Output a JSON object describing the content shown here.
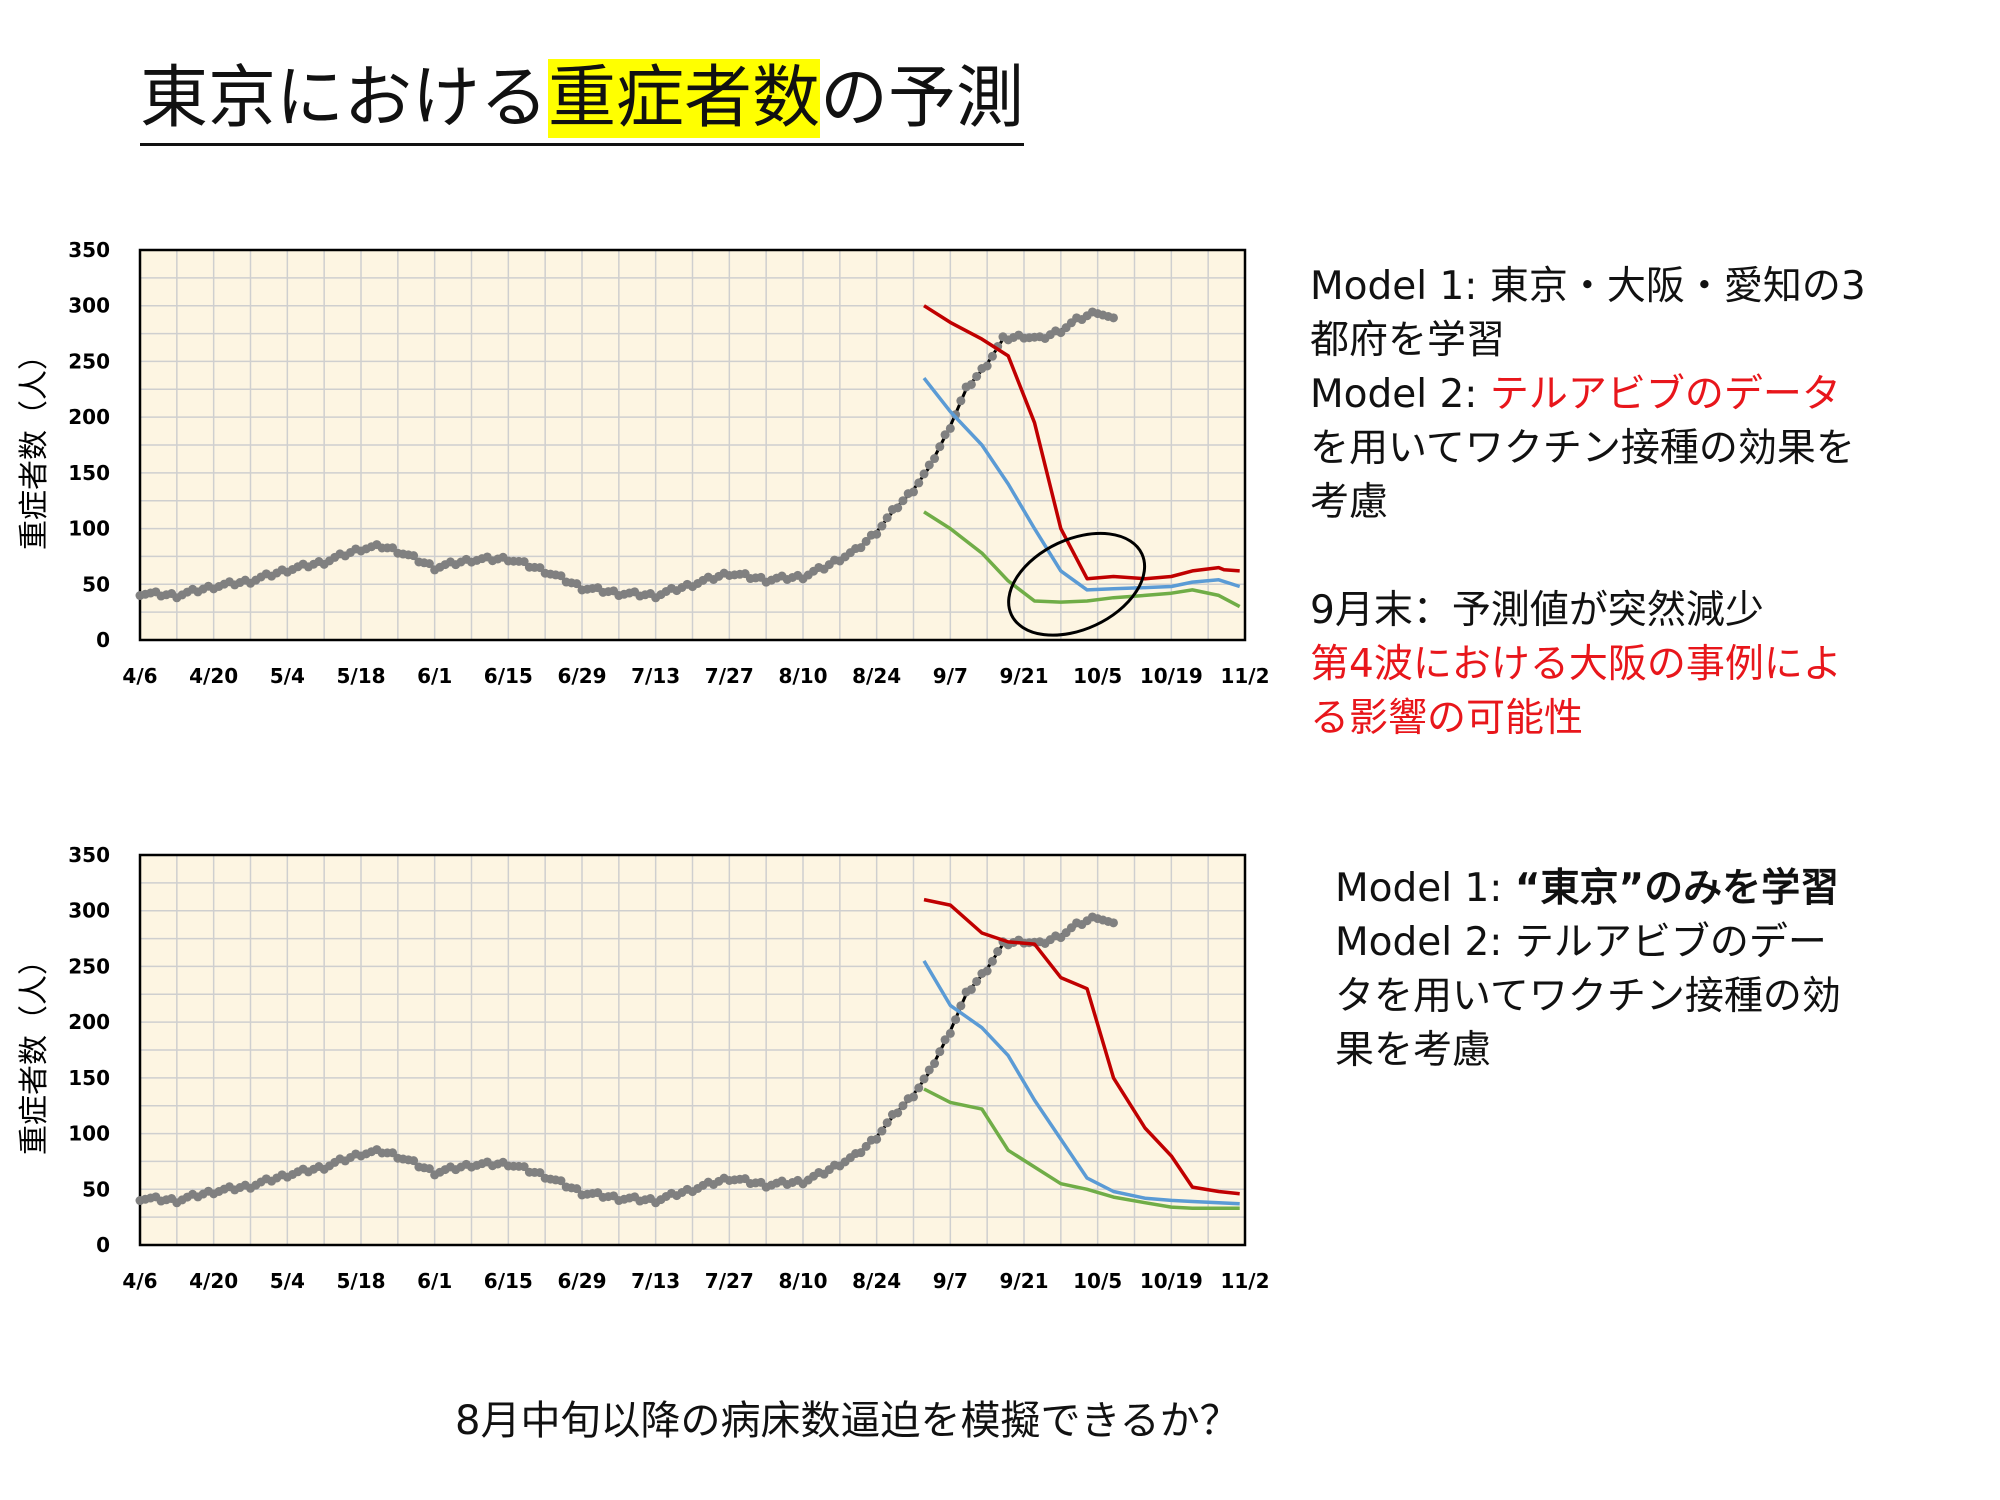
{
  "title": {
    "prefix": "東京における",
    "highlight": "重症者数",
    "suffix": "の予測"
  },
  "bottom_question": "8月中旬以降の病床数逼迫を模擬できるか？",
  "colors": {
    "plot_bg": "#fdf5e2",
    "grid": "#cfcfcf",
    "observed_line": "#000000",
    "observed_points": "#808080",
    "model1": "#c00000",
    "model2": "#5b9bd5",
    "model3": "#70ad47",
    "highlight": "#ffff00",
    "red_text": "#e8161b"
  },
  "chart_notes": {
    "top": {
      "line1": "Model 1: 東京・大阪・愛知の3",
      "line2": "都府を学習",
      "line3_prefix": "Model 2: ",
      "line3_red": "テルアビブのデータ",
      "line4": "を用いてワクチン接種の効果を",
      "line5": "考慮",
      "line6": "9月末：予測値が突然減少",
      "line7": "第4波における大阪の事例によ",
      "line8": "る影響の可能性"
    },
    "bottom": {
      "line1_prefix": "Model 1: ",
      "line1_bold": "“東京”のみを学習",
      "line2": "Model 2: テルアビブのデー",
      "line3": "タを用いてワクチン接種の効",
      "line4": "果を考慮"
    }
  },
  "chart_data": [
    {
      "type": "line",
      "ylabel": "重症者数（人）",
      "ylim": [
        0,
        350
      ],
      "yticks": [
        "0",
        "50",
        "100",
        "150",
        "200",
        "250",
        "300",
        "350"
      ],
      "xticks": [
        "4/6",
        "4/20",
        "5/4",
        "5/18",
        "6/1",
        "6/15",
        "6/29",
        "7/13",
        "7/27",
        "8/10",
        "8/24",
        "9/7",
        "9/21",
        "10/5",
        "10/19",
        "11/2"
      ],
      "x_range_days": [
        0,
        210
      ],
      "grid": true,
      "annotation": "ellipse around the late-September drop",
      "observed": {
        "x": [
          0,
          7,
          14,
          21,
          28,
          35,
          42,
          46,
          49,
          56,
          63,
          70,
          77,
          84,
          91,
          98,
          105,
          112,
          119,
          126,
          130,
          133,
          136,
          140,
          143,
          147,
          150,
          154,
          157,
          161,
          164,
          168,
          171,
          175,
          178,
          182,
          185,
          189,
          196,
          203,
          210
        ],
        "y": [
          42,
          40,
          48,
          53,
          63,
          70,
          82,
          84,
          80,
          65,
          72,
          73,
          62,
          47,
          42,
          40,
          50,
          60,
          54,
          57,
          65,
          73,
          80,
          97,
          115,
          135,
          155,
          192,
          225,
          248,
          270,
          273,
          270,
          278,
          287,
          295,
          287,
          null,
          null,
          null,
          null
        ]
      },
      "series": [
        {
          "x": [
            149,
            154,
            160,
            165,
            170,
            175,
            180,
            185,
            191,
            196,
            200,
            205,
            206,
            209
          ],
          "y": [
            300,
            285,
            270,
            255,
            195,
            100,
            55,
            57,
            55,
            57,
            62,
            65,
            63,
            62
          ]
        },
        {
          "x": [
            149,
            154,
            160,
            165,
            170,
            175,
            180,
            185,
            191,
            196,
            200,
            205,
            209
          ],
          "y": [
            235,
            205,
            175,
            140,
            100,
            62,
            45,
            46,
            47,
            48,
            52,
            54,
            48
          ]
        },
        {
          "x": [
            149,
            154,
            160,
            165,
            170,
            175,
            180,
            185,
            191,
            196,
            200,
            205,
            209
          ],
          "y": [
            115,
            100,
            78,
            53,
            35,
            34,
            35,
            38,
            40,
            42,
            45,
            40,
            30
          ]
        }
      ]
    },
    {
      "type": "line",
      "ylabel": "重症者数（人）",
      "ylim": [
        0,
        350
      ],
      "yticks": [
        "0",
        "50",
        "100",
        "150",
        "200",
        "250",
        "300",
        "350"
      ],
      "xticks": [
        "4/6",
        "4/20",
        "5/4",
        "5/18",
        "6/1",
        "6/15",
        "6/29",
        "7/13",
        "7/27",
        "8/10",
        "8/24",
        "9/7",
        "9/21",
        "10/5",
        "10/19",
        "11/2"
      ],
      "x_range_days": [
        0,
        210
      ],
      "grid": true,
      "observed": {
        "x": [
          0,
          7,
          14,
          21,
          28,
          35,
          42,
          46,
          49,
          56,
          63,
          70,
          77,
          84,
          91,
          98,
          105,
          112,
          119,
          126,
          130,
          133,
          136,
          140,
          143,
          147,
          150,
          154,
          157,
          161,
          164,
          168,
          171,
          175,
          178,
          182,
          185
        ],
        "y": [
          42,
          40,
          48,
          53,
          63,
          70,
          82,
          84,
          80,
          65,
          72,
          73,
          62,
          47,
          42,
          40,
          50,
          60,
          54,
          57,
          65,
          73,
          80,
          97,
          115,
          135,
          155,
          192,
          225,
          248,
          270,
          273,
          270,
          278,
          287,
          295,
          287
        ]
      },
      "series": [
        {
          "x": [
            149,
            154,
            160,
            165,
            170,
            175,
            180,
            185,
            191,
            196,
            200,
            205,
            209
          ],
          "y": [
            310,
            305,
            280,
            272,
            270,
            240,
            230,
            150,
            105,
            80,
            52,
            48,
            46
          ]
        },
        {
          "x": [
            149,
            154,
            160,
            165,
            170,
            175,
            180,
            185,
            191,
            196,
            200,
            205,
            209
          ],
          "y": [
            255,
            215,
            195,
            170,
            130,
            95,
            60,
            48,
            42,
            40,
            39,
            38,
            37
          ]
        },
        {
          "x": [
            149,
            154,
            160,
            165,
            170,
            175,
            180,
            185,
            191,
            196,
            200,
            205,
            209
          ],
          "y": [
            140,
            128,
            122,
            85,
            70,
            55,
            50,
            43,
            38,
            34,
            33,
            33,
            33
          ]
        }
      ]
    }
  ]
}
